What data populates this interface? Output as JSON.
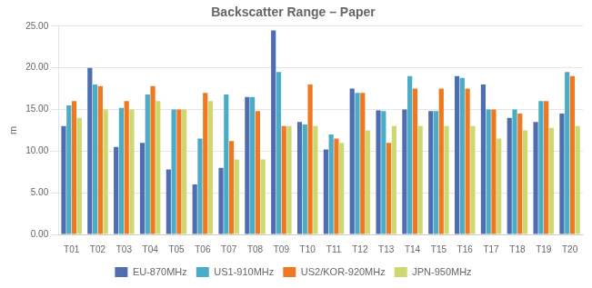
{
  "chart_data": {
    "type": "bar",
    "title": "Backscatter Range – Paper",
    "ylabel": "m",
    "categories": [
      "T01",
      "T02",
      "T03",
      "T04",
      "T05",
      "T06",
      "T07",
      "T08",
      "T09",
      "T10",
      "T11",
      "T12",
      "T13",
      "T14",
      "T15",
      "T16",
      "T17",
      "T18",
      "T19",
      "T20"
    ],
    "series": [
      {
        "name": "EU-870MHz",
        "color": "#4F6EAF",
        "values": [
          13.0,
          20.0,
          10.5,
          11.0,
          7.8,
          6.0,
          8.0,
          16.5,
          24.5,
          13.5,
          10.2,
          17.5,
          14.9,
          15.0,
          14.8,
          19.0,
          18.0,
          14.0,
          13.5,
          14.5
        ]
      },
      {
        "name": "US1-910MHz",
        "color": "#4BACC6",
        "values": [
          15.5,
          18.0,
          15.2,
          16.8,
          15.0,
          11.5,
          16.8,
          16.5,
          19.5,
          13.2,
          12.0,
          17.0,
          14.8,
          19.0,
          14.8,
          18.8,
          15.0,
          15.0,
          16.0,
          19.5
        ]
      },
      {
        "name": "US2/KOR-920MHz",
        "color": "#F07820",
        "values": [
          16.0,
          17.8,
          16.0,
          17.8,
          15.0,
          17.0,
          11.2,
          14.8,
          13.0,
          18.0,
          11.5,
          17.0,
          11.0,
          17.5,
          17.5,
          17.5,
          15.0,
          14.5,
          16.0,
          19.0
        ]
      },
      {
        "name": "JPN-950MHz",
        "color": "#CDD870",
        "values": [
          14.0,
          15.0,
          15.0,
          16.0,
          15.0,
          16.0,
          9.0,
          9.0,
          13.0,
          13.0,
          11.0,
          12.5,
          13.0,
          13.0,
          13.0,
          13.0,
          11.5,
          12.5,
          12.8,
          13.0
        ]
      }
    ],
    "ylim": [
      0,
      25
    ],
    "yticks": [
      {
        "value": 0,
        "label": "0.00"
      },
      {
        "value": 5,
        "label": "5.00"
      },
      {
        "value": 10,
        "label": "10.00"
      },
      {
        "value": 15,
        "label": "15.00"
      },
      {
        "value": 20,
        "label": "20.00"
      },
      {
        "value": 25,
        "label": "25.00"
      }
    ],
    "grid": true,
    "legend": "bottom"
  }
}
